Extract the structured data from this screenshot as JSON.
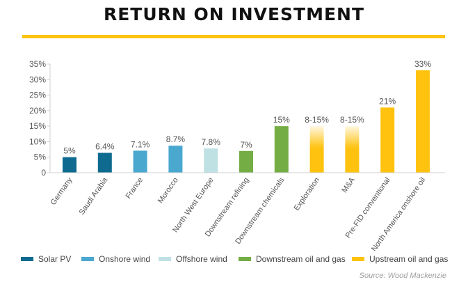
{
  "header": {
    "title": "RETURN ON INVESTMENT"
  },
  "footer": {
    "source": "Source: Wood Mackenzie"
  },
  "colors": {
    "accent": "#ffc20e",
    "axis": "#d0d0d0",
    "text": "#555555"
  },
  "chart_data": {
    "type": "bar",
    "title": "RETURN ON INVESTMENT",
    "xlabel": "",
    "ylabel": "",
    "ylim": [
      0,
      35
    ],
    "yticks": [
      "0",
      "5%",
      "10%",
      "15%",
      "20%",
      "25%",
      "30%",
      "35%"
    ],
    "ytick_values": [
      0,
      5,
      10,
      15,
      20,
      25,
      30,
      35
    ],
    "grid": false,
    "legend_position": "bottom",
    "categories": [
      "Germany",
      "Saudi Arabia",
      "France",
      "Morocco",
      "North West Europe",
      "Downstream refining",
      "Downstream chemicals",
      "Exploration",
      "M&A",
      "Pre-FID conventional",
      "North America onshore oil"
    ],
    "values": [
      5,
      6.4,
      7.1,
      8.7,
      7.8,
      7,
      15,
      15,
      15,
      21,
      33
    ],
    "range_low": [
      null,
      null,
      null,
      null,
      null,
      null,
      null,
      8,
      8,
      null,
      null
    ],
    "data_labels": [
      "5%",
      "6.4%",
      "7.1%",
      "8.7%",
      "7.8%",
      "7%",
      "15%",
      "8-15%",
      "8-15%",
      "21%",
      "33%"
    ],
    "bar_group": [
      "Solar PV",
      "Solar PV",
      "Onshore wind",
      "Onshore wind",
      "Offshore wind",
      "Downstream oil and gas",
      "Downstream oil and gas",
      "Upstream oil and gas",
      "Upstream oil and gas",
      "Upstream oil and gas",
      "Upstream oil and gas"
    ],
    "legend": [
      {
        "name": "Solar PV",
        "color": "#0e6a8f"
      },
      {
        "name": "Onshore wind",
        "color": "#4aa8cf"
      },
      {
        "name": "Offshore wind",
        "color": "#bfe1e4"
      },
      {
        "name": "Downstream oil and gas",
        "color": "#74ad43"
      },
      {
        "name": "Upstream oil and gas",
        "color": "#ffc20e"
      }
    ]
  }
}
